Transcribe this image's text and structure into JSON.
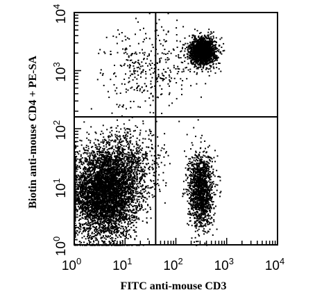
{
  "chart_data": {
    "type": "scatter",
    "title": "",
    "xlabel": "FITC anti-mouse CD3",
    "ylabel": "Biotin anti-mouse CD4 + PE-SA",
    "x_scale": "log",
    "y_scale": "log",
    "xlim": [
      1,
      10000
    ],
    "ylim": [
      1,
      10000
    ],
    "x_ticks": [
      {
        "base": "10",
        "exp": "0"
      },
      {
        "base": "10",
        "exp": "1"
      },
      {
        "base": "10",
        "exp": "2"
      },
      {
        "base": "10",
        "exp": "3"
      },
      {
        "base": "10",
        "exp": "4"
      }
    ],
    "y_ticks": [
      {
        "base": "10",
        "exp": "0"
      },
      {
        "base": "10",
        "exp": "1"
      },
      {
        "base": "10",
        "exp": "2"
      },
      {
        "base": "10",
        "exp": "3"
      },
      {
        "base": "10",
        "exp": "4"
      }
    ],
    "quadrant_gates": {
      "x": 40,
      "y": 160
    },
    "populations": [
      {
        "center": [
          4,
          8
        ],
        "spread_decades": [
          0.32,
          0.38
        ],
        "relative_size": 0.55
      },
      {
        "center": [
          300,
          9
        ],
        "spread_decades": [
          0.12,
          0.32
        ],
        "relative_size": 0.16
      },
      {
        "center": [
          330,
          2200
        ],
        "spread_decades": [
          0.13,
          0.12
        ],
        "relative_size": 0.18
      },
      {
        "center": [
          12,
          25
        ],
        "spread_decades": [
          0.35,
          0.3
        ],
        "relative_size": 0.07
      },
      {
        "center": [
          30,
          1200
        ],
        "spread_decades": [
          0.45,
          0.35
        ],
        "relative_size": 0.04
      }
    ],
    "grid": false,
    "legend": "none",
    "marker_color": "#000000"
  }
}
